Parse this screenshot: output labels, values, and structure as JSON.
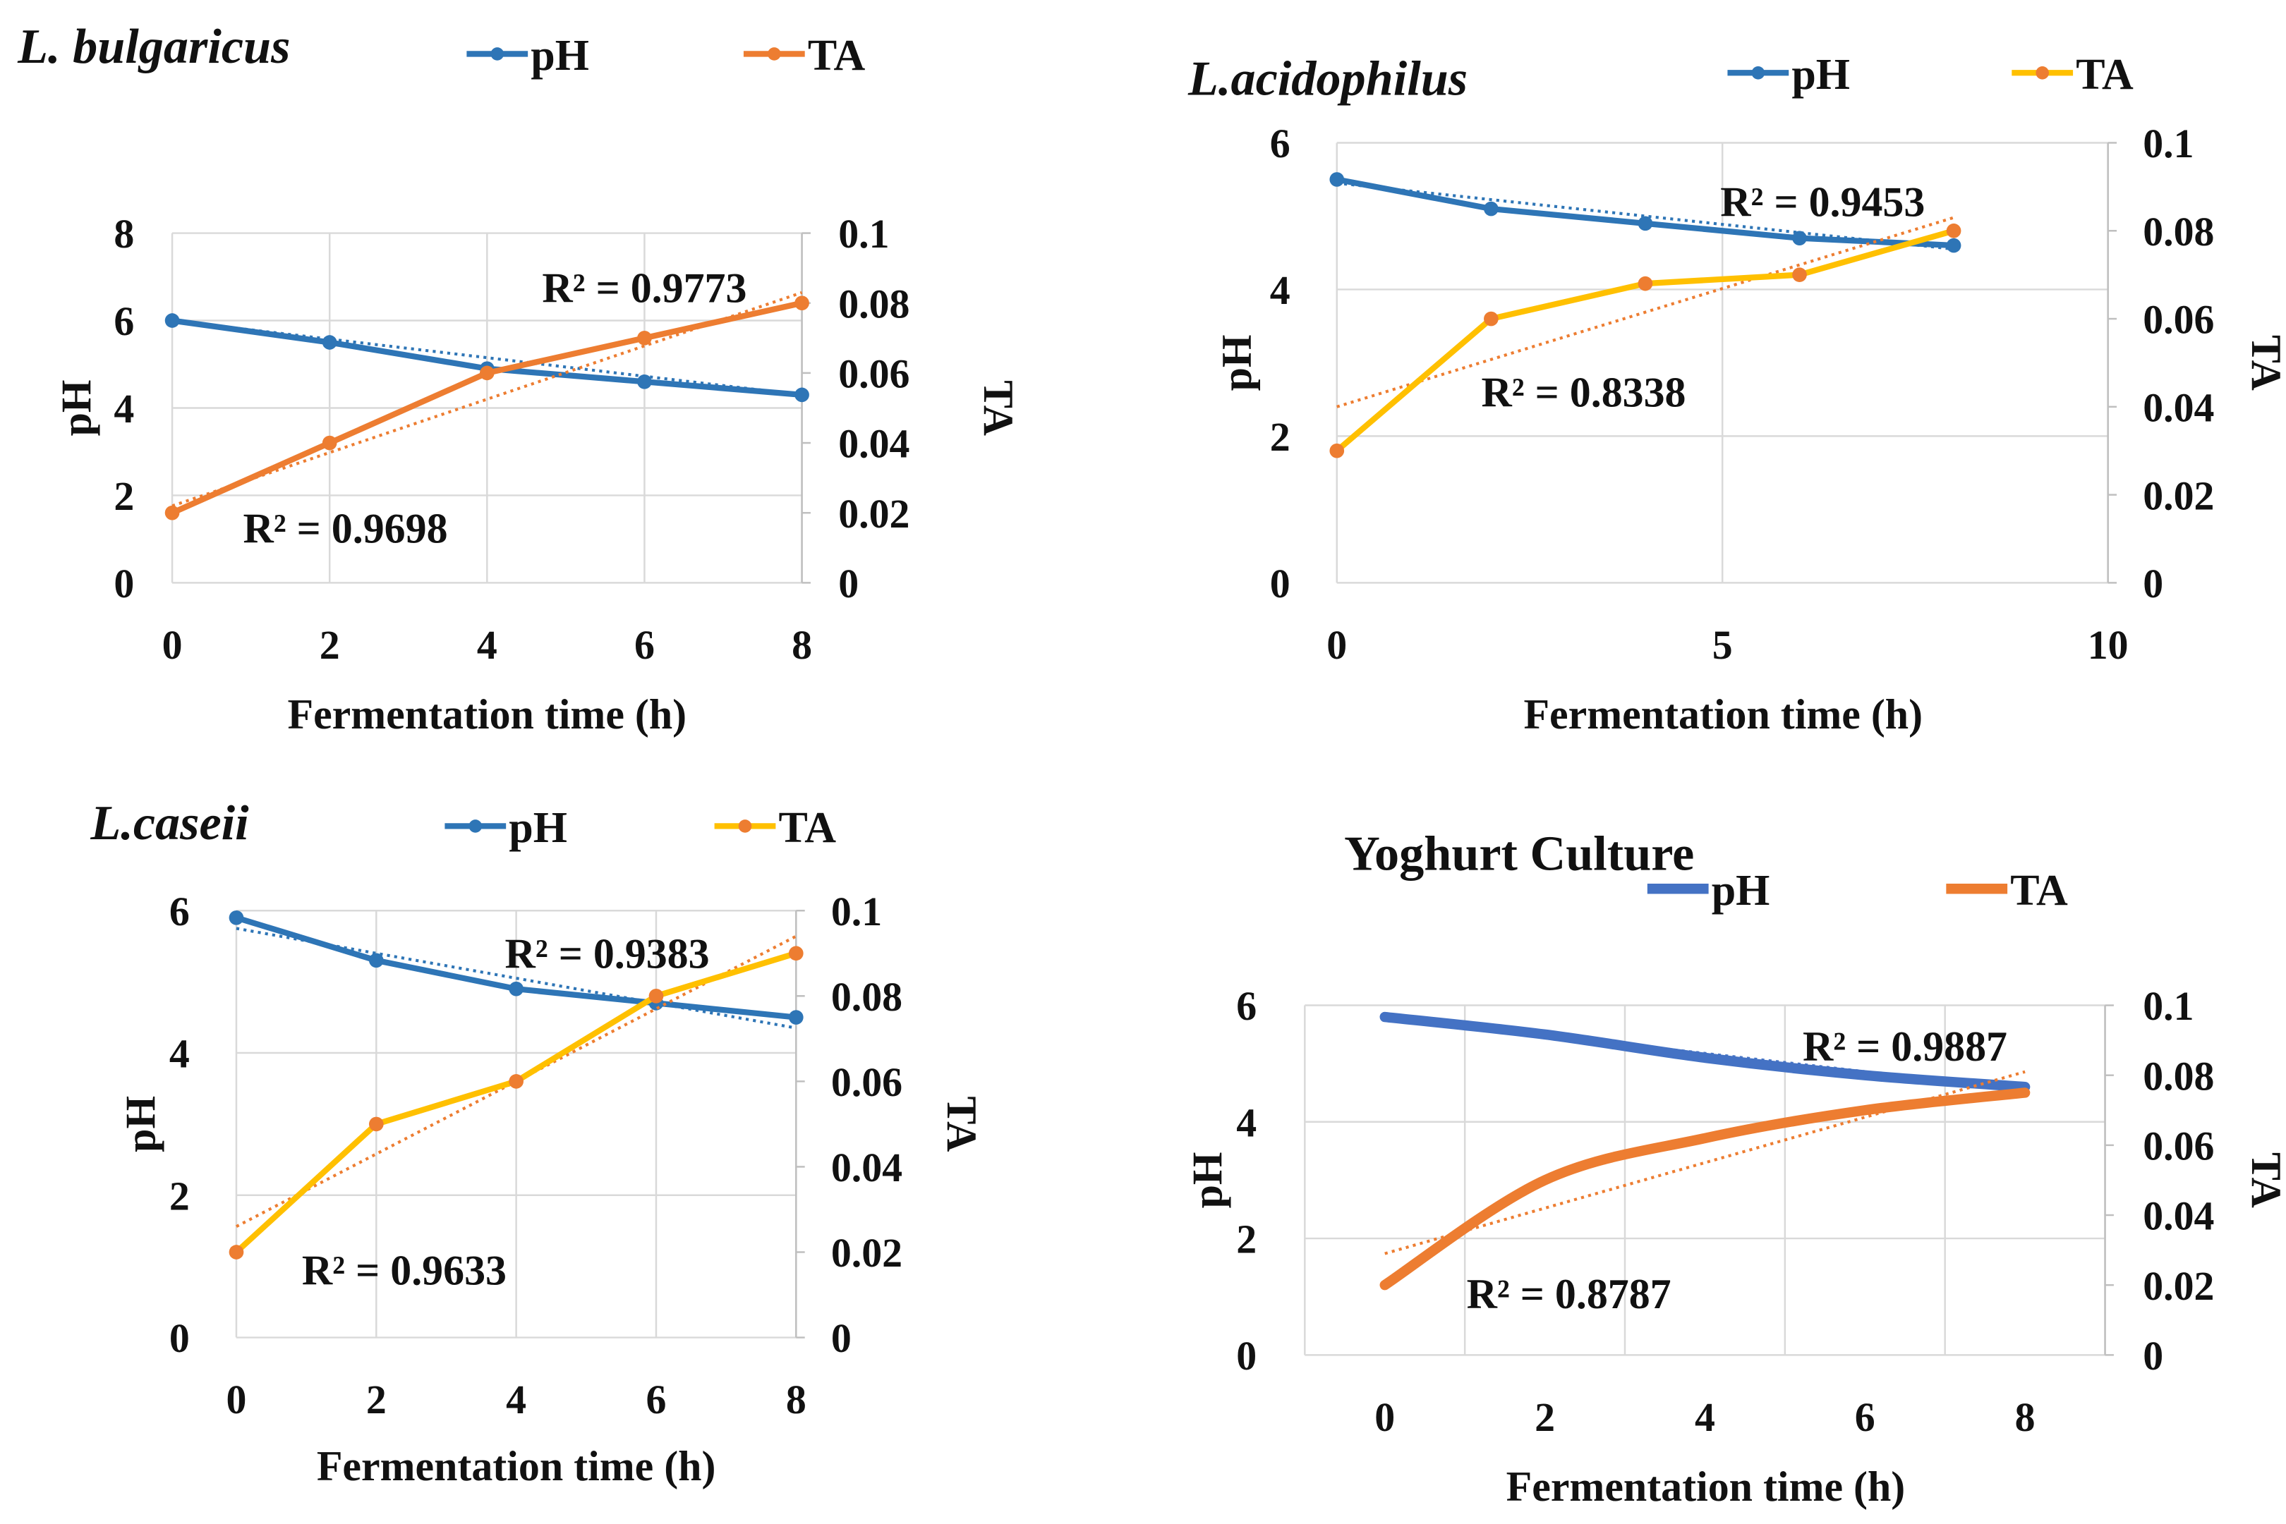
{
  "chart_data": [
    {
      "type": "line",
      "title": "L. bulgaricus",
      "title_italic": true,
      "xlabel": "Fermentation time (h)",
      "ylabel": "pH",
      "y2label": "TA",
      "x": [
        0,
        2,
        4,
        6,
        8
      ],
      "xlim": [
        0,
        8
      ],
      "xticks": [
        0,
        2,
        4,
        6,
        8
      ],
      "xgrid": [
        0,
        2,
        4,
        6,
        8
      ],
      "ylim": [
        0,
        8
      ],
      "yticks": [
        0,
        2,
        4,
        6,
        8
      ],
      "y2lim": [
        0,
        0.1
      ],
      "y2ticks": [
        "0",
        "0.02",
        "0.04",
        "0.06",
        "0.08",
        "0.1"
      ],
      "markers": true,
      "series": [
        {
          "name": "pH",
          "axis": "left",
          "color": "#2e75b6",
          "values": [
            6.0,
            5.5,
            4.9,
            4.6,
            4.3
          ],
          "trend": [
            6.0,
            4.3
          ]
        },
        {
          "name": "TA",
          "axis": "right",
          "color": "#ed7d31",
          "values": [
            0.02,
            0.04,
            0.06,
            0.07,
            0.08
          ],
          "trend": [
            0.022,
            0.083
          ]
        }
      ],
      "annotations": [
        {
          "text": "R² = 0.9773",
          "x": 6.0,
          "y": 6.75
        },
        {
          "text": "R² = 0.9698",
          "x": 2.2,
          "y": 1.25
        }
      ],
      "legend": "top"
    },
    {
      "type": "line",
      "title": "L.acidophilus",
      "title_italic": true,
      "xlabel": "Fermentation time (h)",
      "ylabel": "pH",
      "y2label": "TA",
      "x": [
        0,
        2,
        4,
        6,
        8
      ],
      "xlim": [
        0,
        10
      ],
      "xticks": [
        0,
        5,
        10
      ],
      "xgrid": [
        0,
        5,
        10
      ],
      "ylim": [
        0,
        6
      ],
      "yticks": [
        0,
        2,
        4,
        6
      ],
      "y2lim": [
        0,
        0.1
      ],
      "y2ticks": [
        "0",
        "0.02",
        "0.04",
        "0.06",
        "0.08",
        "0.1"
      ],
      "markers": true,
      "series": [
        {
          "name": "pH",
          "axis": "left",
          "color": "#2e75b6",
          "values": [
            5.5,
            5.1,
            4.9,
            4.7,
            4.6
          ],
          "trend": [
            5.45,
            4.55
          ]
        },
        {
          "name": "TA",
          "axis": "right",
          "color": "#ffc000",
          "values": [
            0.03,
            0.06,
            0.068,
            0.07,
            0.08
          ],
          "trend": [
            0.04,
            0.083
          ]
        }
      ],
      "annotations": [
        {
          "text": "R² = 0.9453",
          "x": 6.3,
          "y": 5.2
        },
        {
          "text": "R² = 0.8338",
          "x": 3.2,
          "y": 2.6
        }
      ],
      "legend": "top"
    },
    {
      "type": "line",
      "title": "L.caseii",
      "title_italic": true,
      "xlabel": "Fermentation time (h)",
      "ylabel": "pH",
      "y2label": "TA",
      "x": [
        0,
        2,
        4,
        6,
        8
      ],
      "xlim": [
        0,
        8
      ],
      "xticks": [
        0,
        2,
        4,
        6,
        8
      ],
      "xgrid": [
        0,
        2,
        4,
        6,
        8
      ],
      "ylim": [
        0,
        6
      ],
      "yticks": [
        0,
        2,
        4,
        6
      ],
      "y2lim": [
        0,
        0.1
      ],
      "y2ticks": [
        "0",
        "0.02",
        "0.04",
        "0.06",
        "0.08",
        "0.1"
      ],
      "markers": true,
      "series": [
        {
          "name": "pH",
          "axis": "left",
          "color": "#2e75b6",
          "values": [
            5.9,
            5.3,
            4.9,
            4.7,
            4.5
          ],
          "trend": [
            5.75,
            4.35
          ]
        },
        {
          "name": "TA",
          "axis": "right",
          "color": "#ffc000",
          "values": [
            0.02,
            0.05,
            0.06,
            0.08,
            0.09
          ],
          "trend": [
            0.026,
            0.094
          ]
        }
      ],
      "annotations": [
        {
          "text": "R² = 0.9383",
          "x": 5.3,
          "y": 5.4
        },
        {
          "text": "R² = 0.9633",
          "x": 2.4,
          "y": 0.95
        }
      ],
      "legend": "top"
    },
    {
      "type": "line",
      "title": "Yoghurt Culture",
      "title_italic": false,
      "xlabel": "Fermentation time (h)",
      "ylabel": "pH",
      "y2label": "TA",
      "x": [
        0,
        2,
        4,
        6,
        8
      ],
      "xlim": [
        -1,
        9
      ],
      "xticks": [
        0,
        2,
        4,
        6,
        8
      ],
      "xgrid": [
        -1,
        1,
        3,
        5,
        7,
        9
      ],
      "ylim": [
        0,
        6
      ],
      "yticks": [
        0,
        2,
        4,
        6
      ],
      "y2lim": [
        0,
        0.1
      ],
      "y2ticks": [
        "0",
        "0.02",
        "0.04",
        "0.06",
        "0.08",
        "0.1"
      ],
      "markers": false,
      "smooth": true,
      "series": [
        {
          "name": "pH",
          "axis": "left",
          "color": "#4472c4",
          "values": [
            5.8,
            5.5,
            5.1,
            4.8,
            4.6
          ],
          "trend": [
            5.8,
            4.55
          ]
        },
        {
          "name": "TA",
          "axis": "right",
          "color": "#ed7d31",
          "values": [
            0.02,
            0.05,
            0.062,
            0.07,
            0.075
          ],
          "trend": [
            0.029,
            0.081
          ]
        }
      ],
      "annotations": [
        {
          "text": "R² = 0.9887",
          "x": 6.5,
          "y": 5.3
        },
        {
          "text": "R² = 0.8787",
          "x": 2.3,
          "y": 1.05
        }
      ],
      "legend": "top"
    }
  ]
}
